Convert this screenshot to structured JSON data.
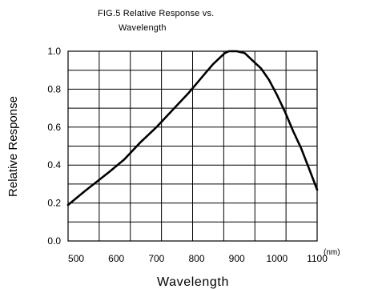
{
  "chart_data": {
    "type": "line",
    "title_lines": [
      "FIG.5 Relative Response vs.",
      "Wavelength"
    ],
    "xlabel": "Wavelength",
    "ylabel": "Relative Response",
    "x_unit": "(nm)",
    "xlim": [
      480,
      1100
    ],
    "ylim": [
      0.0,
      1.0
    ],
    "x_ticks": [
      500,
      600,
      700,
      800,
      900,
      1000,
      1100
    ],
    "x_tick_labels": [
      "500",
      "600",
      "700",
      "800",
      "900",
      "1000",
      "1100"
    ],
    "y_ticks": [
      0.0,
      0.2,
      0.4,
      0.6,
      0.8,
      1.0
    ],
    "y_tick_labels": [
      "0.0",
      "0.2",
      "0.4",
      "0.6",
      "0.8",
      "1.0"
    ],
    "grid": true,
    "series": [
      {
        "x": [
          480,
          520,
          580,
          620,
          660,
          700,
          740,
          780,
          800,
          820,
          840,
          860,
          870,
          880,
          900,
          920,
          940,
          960,
          980,
          1000,
          1020,
          1040,
          1060,
          1080,
          1100
        ],
        "y": [
          0.19,
          0.26,
          0.36,
          0.43,
          0.52,
          0.6,
          0.69,
          0.78,
          0.83,
          0.88,
          0.93,
          0.97,
          0.99,
          1.0,
          1.0,
          0.99,
          0.95,
          0.91,
          0.85,
          0.77,
          0.68,
          0.58,
          0.49,
          0.38,
          0.27
        ]
      }
    ]
  }
}
